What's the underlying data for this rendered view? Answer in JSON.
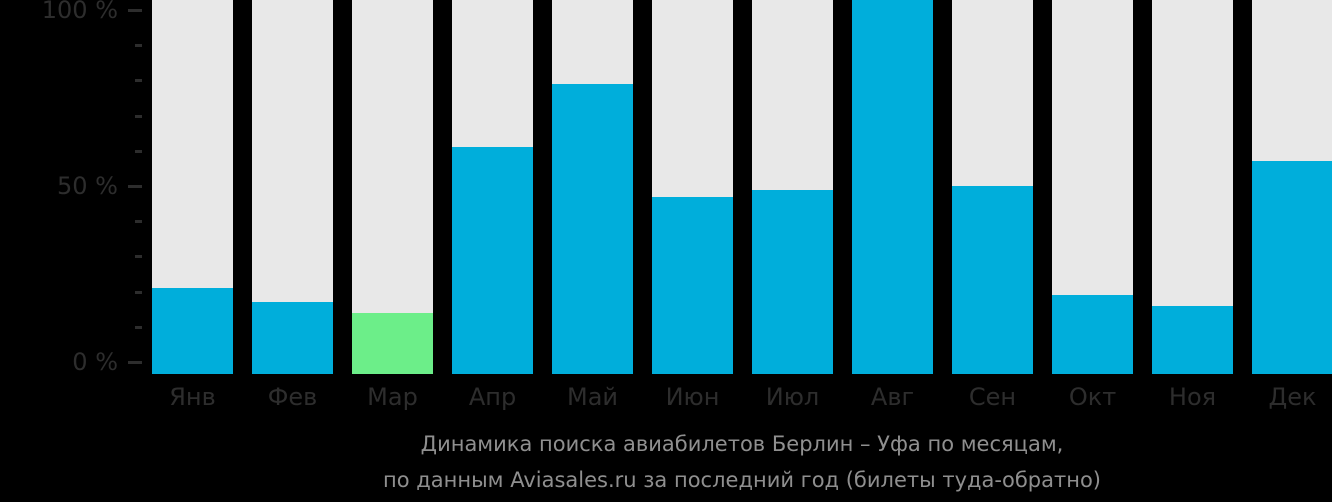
{
  "chart_data": {
    "type": "bar",
    "title": "Динамика поиска авиабилетов Берлин – Уфа по месяцам, по данным Aviasales.ru за последний год (билеты туда-обратно)",
    "categories": [
      "Янв",
      "Фев",
      "Мар",
      "Апр",
      "Май",
      "Июн",
      "Июл",
      "Авг",
      "Сен",
      "Окт",
      "Ноя",
      "Дек"
    ],
    "values": [
      21,
      17,
      14,
      61,
      79,
      47,
      49,
      100,
      50,
      19,
      16,
      57
    ],
    "unit": "%",
    "xlabel": "",
    "ylabel": "",
    "ylim": [
      0,
      100
    ],
    "grid": false,
    "legend_position": "none",
    "bar_color": "#00aedb",
    "track_color": "#e8e8e8",
    "highlight": {
      "index": 2,
      "category": "Мар",
      "color": "#6cee89"
    },
    "y_axis": {
      "major_ticks": [
        {
          "value": 100,
          "label": "100 %"
        },
        {
          "value": 50,
          "label": "50 %"
        },
        {
          "value": 0,
          "label": "0 %"
        }
      ],
      "minor_tick_values": [
        90,
        80,
        70,
        60,
        40,
        30,
        20,
        10
      ]
    }
  },
  "caption": {
    "line1": "Динамика поиска авиабилетов Берлин – Уфа по месяцам,",
    "line2": "по данным Aviasales.ru за последний год (билеты туда-обратно)"
  },
  "colors": {
    "background": "#000000",
    "axis_label": "#2d2d2d",
    "tick_mark": "#2d2d2d",
    "month_label": "#2d2d2d",
    "caption_text": "#8f8f8f"
  }
}
